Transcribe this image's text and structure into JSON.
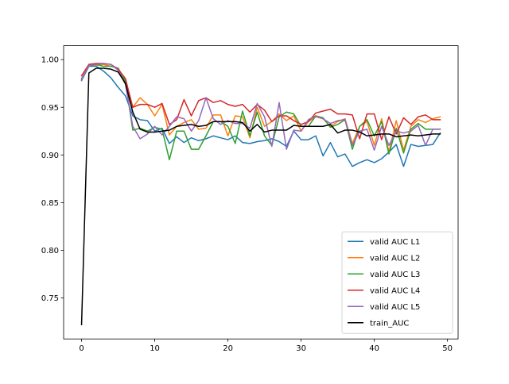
{
  "chart_data": {
    "type": "line",
    "title": "",
    "xlabel": "",
    "ylabel": "",
    "xlim": [
      -2.45,
      51.45
    ],
    "ylim": [
      0.707,
      1.0146
    ],
    "xticks": [
      0,
      10,
      20,
      30,
      40,
      50
    ],
    "xtick_labels": [
      "0",
      "10",
      "20",
      "30",
      "40",
      "50"
    ],
    "yticks": [
      0.75,
      0.8,
      0.85,
      0.9,
      0.95,
      1.0
    ],
    "ytick_labels": [
      "0.75",
      "0.80",
      "0.85",
      "0.90",
      "0.95",
      "1.00"
    ],
    "grid": false,
    "legend_location": "lower right",
    "series": [
      {
        "name": "valid AUC L1",
        "color": "#1f77b4",
        "x": [
          0,
          1,
          2,
          3,
          4,
          5,
          6,
          7,
          8,
          9,
          10,
          11,
          12,
          13,
          14,
          15,
          16,
          17,
          18,
          19,
          20,
          21,
          22,
          23,
          24,
          25,
          26,
          27,
          28,
          29,
          30,
          31,
          32,
          33,
          34,
          35,
          36,
          37,
          38,
          39,
          40,
          41,
          42,
          43,
          44,
          45,
          46,
          47,
          48,
          49
        ],
        "values": [
          0.978,
          0.993,
          0.993,
          0.988,
          0.981,
          0.971,
          0.962,
          0.941,
          0.937,
          0.936,
          0.925,
          0.928,
          0.912,
          0.919,
          0.913,
          0.918,
          0.915,
          0.917,
          0.92,
          0.918,
          0.916,
          0.92,
          0.913,
          0.912,
          0.914,
          0.915,
          0.917,
          0.914,
          0.909,
          0.925,
          0.916,
          0.916,
          0.92,
          0.899,
          0.913,
          0.898,
          0.901,
          0.888,
          0.892,
          0.895,
          0.892,
          0.896,
          0.903,
          0.911,
          0.888,
          0.911,
          0.909,
          0.91,
          0.911,
          0.923
        ]
      },
      {
        "name": "valid AUC L2",
        "color": "#ff7f0e",
        "x": [
          0,
          1,
          2,
          3,
          4,
          5,
          6,
          7,
          8,
          9,
          10,
          11,
          12,
          13,
          14,
          15,
          16,
          17,
          18,
          19,
          20,
          21,
          22,
          23,
          24,
          25,
          26,
          27,
          28,
          29,
          30,
          31,
          32,
          33,
          34,
          35,
          36,
          37,
          38,
          39,
          40,
          41,
          42,
          43,
          44,
          45,
          46,
          47,
          48,
          49
        ],
        "values": [
          0.979,
          0.994,
          0.994,
          0.995,
          0.993,
          0.991,
          0.978,
          0.95,
          0.96,
          0.953,
          0.941,
          0.953,
          0.921,
          0.93,
          0.934,
          0.937,
          0.927,
          0.928,
          0.942,
          0.942,
          0.92,
          0.941,
          0.94,
          0.918,
          0.95,
          0.93,
          0.935,
          0.943,
          0.936,
          0.941,
          0.925,
          0.935,
          0.94,
          0.938,
          0.93,
          0.935,
          0.938,
          0.912,
          0.93,
          0.935,
          0.91,
          0.938,
          0.903,
          0.936,
          0.905,
          0.93,
          0.937,
          0.934,
          0.938,
          0.94
        ]
      },
      {
        "name": "valid AUC L3",
        "color": "#2ca02c",
        "x": [
          0,
          1,
          2,
          3,
          4,
          5,
          6,
          7,
          8,
          9,
          10,
          11,
          12,
          13,
          14,
          15,
          16,
          17,
          18,
          19,
          20,
          21,
          22,
          23,
          24,
          25,
          26,
          27,
          28,
          29,
          30,
          31,
          32,
          33,
          34,
          35,
          36,
          37,
          38,
          39,
          40,
          41,
          42,
          43,
          44,
          45,
          46,
          47,
          48,
          49
        ],
        "values": [
          0.98,
          0.993,
          0.995,
          0.993,
          0.993,
          0.991,
          0.977,
          0.926,
          0.928,
          0.925,
          0.929,
          0.927,
          0.895,
          0.925,
          0.925,
          0.906,
          0.906,
          0.92,
          0.935,
          0.935,
          0.93,
          0.912,
          0.946,
          0.92,
          0.945,
          0.92,
          0.91,
          0.94,
          0.945,
          0.943,
          0.93,
          0.93,
          0.941,
          0.939,
          0.929,
          0.932,
          0.937,
          0.906,
          0.93,
          0.937,
          0.92,
          0.935,
          0.901,
          0.928,
          0.902,
          0.927,
          0.933,
          0.927,
          0.927,
          0.927
        ]
      },
      {
        "name": "valid AUC L4",
        "color": "#d62728",
        "x": [
          0,
          1,
          2,
          3,
          4,
          5,
          6,
          7,
          8,
          9,
          10,
          11,
          12,
          13,
          14,
          15,
          16,
          17,
          18,
          19,
          20,
          21,
          22,
          23,
          24,
          25,
          26,
          27,
          28,
          29,
          30,
          31,
          32,
          33,
          34,
          35,
          36,
          37,
          38,
          39,
          40,
          41,
          42,
          43,
          44,
          45,
          46,
          47,
          48,
          49
        ],
        "values": [
          0.983,
          0.995,
          0.996,
          0.996,
          0.995,
          0.99,
          0.98,
          0.95,
          0.953,
          0.953,
          0.95,
          0.954,
          0.932,
          0.937,
          0.958,
          0.941,
          0.957,
          0.96,
          0.955,
          0.957,
          0.953,
          0.951,
          0.953,
          0.945,
          0.953,
          0.947,
          0.935,
          0.941,
          0.941,
          0.936,
          0.932,
          0.935,
          0.944,
          0.946,
          0.948,
          0.943,
          0.943,
          0.942,
          0.917,
          0.943,
          0.943,
          0.916,
          0.94,
          0.922,
          0.939,
          0.932,
          0.94,
          0.942,
          0.937,
          0.937
        ]
      },
      {
        "name": "valid AUC L5",
        "color": "#9467bd",
        "x": [
          0,
          1,
          2,
          3,
          4,
          5,
          6,
          7,
          8,
          9,
          10,
          11,
          12,
          13,
          14,
          15,
          16,
          17,
          18,
          19,
          20,
          21,
          22,
          23,
          24,
          25,
          26,
          27,
          28,
          29,
          30,
          31,
          32,
          33,
          34,
          35,
          36,
          37,
          38,
          39,
          40,
          41,
          42,
          43,
          44,
          45,
          46,
          47,
          48,
          49
        ],
        "values": [
          0.979,
          0.994,
          0.995,
          0.996,
          0.995,
          0.989,
          0.974,
          0.93,
          0.917,
          0.922,
          0.93,
          0.921,
          0.93,
          0.94,
          0.938,
          0.925,
          0.936,
          0.96,
          0.938,
          0.932,
          0.936,
          0.933,
          0.933,
          0.928,
          0.954,
          0.94,
          0.909,
          0.955,
          0.906,
          0.926,
          0.925,
          0.937,
          0.941,
          0.938,
          0.933,
          0.936,
          0.937,
          0.91,
          0.925,
          0.927,
          0.905,
          0.93,
          0.91,
          0.925,
          0.923,
          0.925,
          0.931,
          0.91,
          0.927,
          0.927
        ]
      },
      {
        "name": "train_AUC",
        "color": "#000000",
        "x": [
          0,
          1,
          2,
          3,
          4,
          5,
          6,
          7,
          8,
          9,
          10,
          11,
          12,
          13,
          14,
          15,
          16,
          17,
          18,
          19,
          20,
          21,
          22,
          23,
          24,
          25,
          26,
          27,
          28,
          29,
          30,
          31,
          32,
          33,
          34,
          35,
          36,
          37,
          38,
          39,
          40,
          41,
          42,
          43,
          44,
          45,
          46,
          47,
          48,
          49
        ],
        "values": [
          0.722,
          0.986,
          0.991,
          0.991,
          0.99,
          0.987,
          0.975,
          0.945,
          0.927,
          0.924,
          0.924,
          0.925,
          0.926,
          0.93,
          0.931,
          0.932,
          0.93,
          0.931,
          0.935,
          0.935,
          0.935,
          0.935,
          0.934,
          0.925,
          0.932,
          0.924,
          0.926,
          0.926,
          0.926,
          0.931,
          0.93,
          0.93,
          0.93,
          0.93,
          0.932,
          0.923,
          0.926,
          0.926,
          0.924,
          0.92,
          0.921,
          0.922,
          0.922,
          0.919,
          0.92,
          0.921,
          0.92,
          0.921,
          0.922,
          0.922
        ]
      }
    ]
  }
}
